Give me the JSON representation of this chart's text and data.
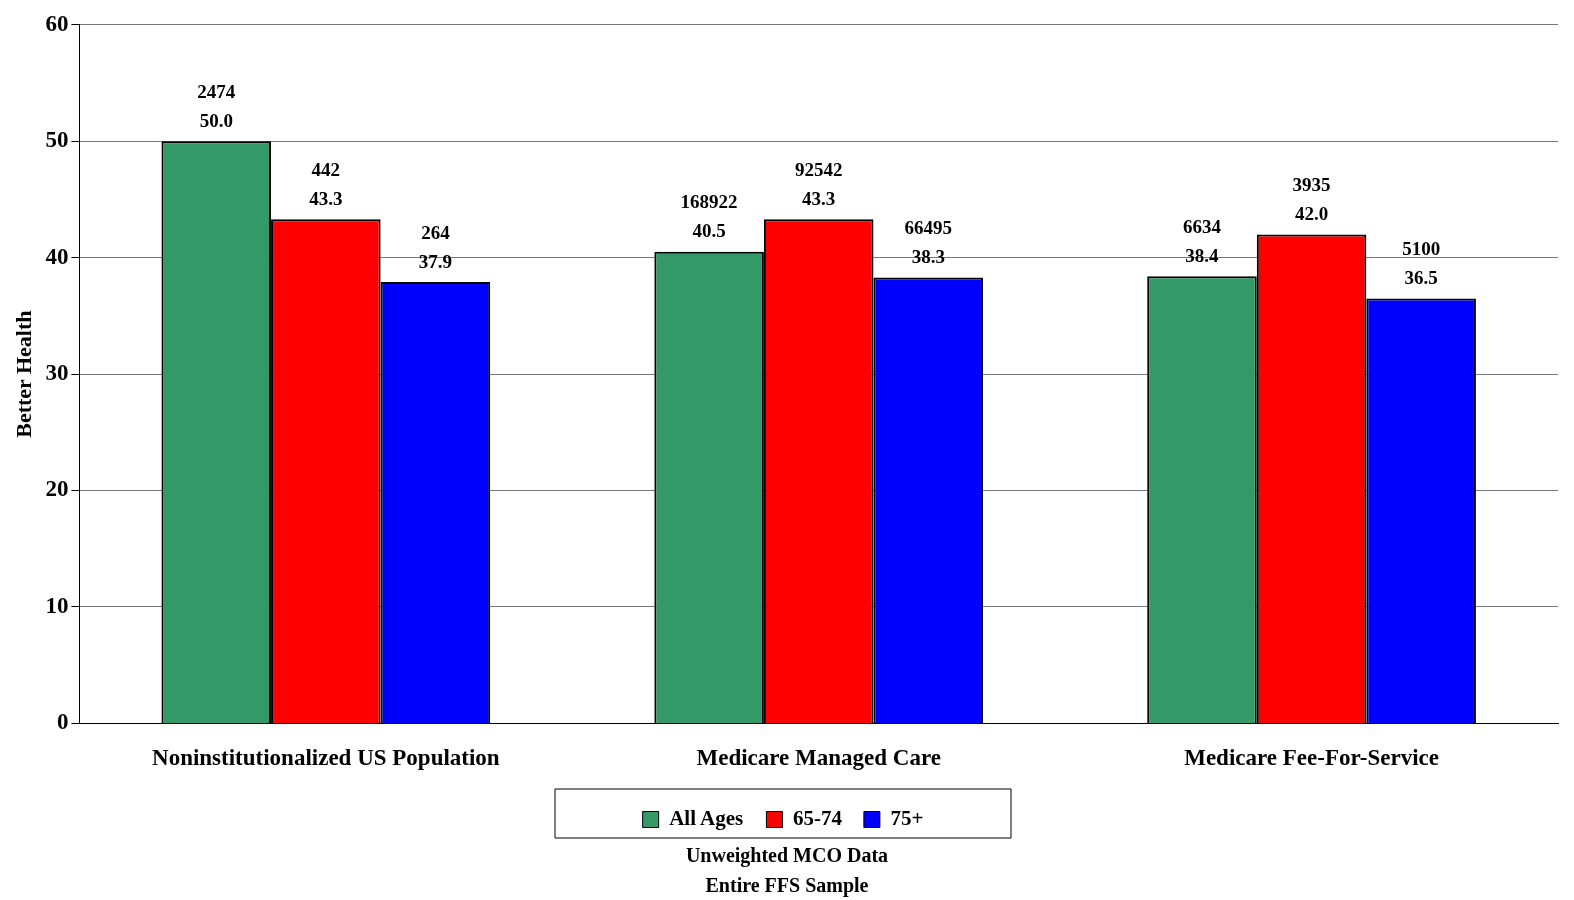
{
  "chart_data": {
    "type": "bar",
    "ylabel": "Better Health",
    "categories": [
      "Noninstitutionalized US Population",
      "Medicare Managed Care",
      "Medicare Fee-For-Service"
    ],
    "series": [
      {
        "name": "All Ages",
        "color": "#339966",
        "values": [
          50.0,
          40.5,
          38.4
        ],
        "value_labels": [
          "2474\n50.0",
          "168922\n40.5",
          "6634\n38.4"
        ]
      },
      {
        "name": "65-74",
        "color": "#ff0000",
        "values": [
          43.3,
          43.3,
          42.0
        ],
        "value_labels": [
          "442\n43.3",
          "92542\n43.3",
          "3935\n42.0"
        ]
      },
      {
        "name": "75+",
        "color": "#0000ff",
        "values": [
          37.9,
          38.3,
          36.5
        ],
        "value_labels": [
          "264\n37.9",
          "66495\n38.3",
          "5100\n36.5"
        ]
      }
    ],
    "ylim": [
      0,
      60
    ],
    "yticks": [
      0,
      10,
      20,
      30,
      40,
      50,
      60
    ],
    "grid": "y",
    "legend": "bottom",
    "annotations": [
      "Unweighted MCO Data",
      "Entire FFS Sample"
    ]
  }
}
